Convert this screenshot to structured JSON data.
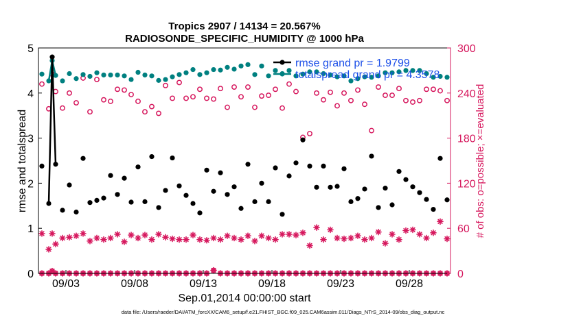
{
  "chart_data": {
    "type": "line",
    "title": "Tropics 2907 / 14134 = 20.567%",
    "subtitle": "RADIOSONDE_SPECIFIC_HUMIDITY @ 1000 hPa",
    "xlabel": "Sep.01,2014 00:00:00 start",
    "ylabel": "rmse and totalspread",
    "ylabel_right": "# of obs: o=possible; ×=evaluated",
    "footer": "data file: /Users/raeder/DAI/ATM_forcXX/CAM6_setup/f.e21.FHIST_BGC.f09_025.CAM6assim.011/Diags_NTrS_2014-09/obs_diag_output.nc",
    "xlim": [
      1.0,
      31.0
    ],
    "ylim": [
      0,
      5
    ],
    "ylim_right": [
      0,
      300
    ],
    "x_ticks": [
      3,
      8,
      13,
      18,
      23,
      28
    ],
    "x_tick_labels": [
      "09/03",
      "09/08",
      "09/13",
      "09/18",
      "09/23",
      "09/28"
    ],
    "y_ticks": [
      0,
      1,
      2,
      3,
      4,
      5
    ],
    "y_tick_labels": [
      "0",
      "1",
      "2",
      "3",
      "4",
      "5"
    ],
    "y_right_ticks": [
      0,
      60,
      120,
      180,
      240,
      300
    ],
    "y_right_tick_labels": [
      "0",
      "60",
      "120",
      "180",
      "240",
      "300"
    ],
    "legend": [
      {
        "label": "rmse grand pr = 1.9799",
        "color": "#000000"
      },
      {
        "label": "totalspread grand pr = 4.3578",
        "color": "#008080"
      }
    ],
    "colors": {
      "rmse": "#000000",
      "spread": "#008080",
      "obs": "#d6175d",
      "legend_text": "#1c4fe8"
    },
    "series": [
      {
        "name": "rmse",
        "axis": "left",
        "x": [
          1.25,
          1.75,
          2.0,
          2.25,
          2.75,
          3.25,
          3.75,
          4.25,
          4.75,
          5.25,
          5.75,
          6.25,
          6.75,
          7.25,
          7.75,
          8.25,
          8.75,
          9.25,
          9.75,
          10.25,
          10.75,
          11.25,
          11.75,
          12.25,
          12.75,
          13.25,
          13.75,
          14.25,
          14.75,
          15.25,
          15.75,
          16.25,
          16.75,
          17.25,
          17.75,
          18.25,
          18.75,
          19.25,
          19.75,
          20.25,
          20.75,
          21.25,
          21.75,
          22.25,
          22.75,
          23.25,
          23.75,
          24.25,
          24.75,
          25.25,
          25.75,
          26.25,
          26.75,
          27.25,
          27.75,
          28.25,
          28.75,
          29.25,
          29.75,
          30.25,
          30.75
        ],
        "values": [
          2.38,
          1.55,
          4.8,
          2.42,
          1.4,
          1.96,
          1.36,
          2.55,
          1.57,
          1.62,
          1.67,
          2.17,
          1.75,
          2.11,
          1.58,
          2.36,
          1.59,
          2.59,
          1.46,
          1.84,
          2.56,
          1.94,
          1.73,
          1.55,
          1.34,
          2.29,
          1.82,
          2.23,
          1.75,
          1.92,
          1.44,
          2.42,
          1.59,
          2.0,
          1.59,
          2.34,
          1.31,
          2.16,
          2.45,
          2.96,
          2.38,
          1.91,
          2.38,
          1.91,
          1.93,
          2.32,
          1.59,
          1.66,
          1.87,
          2.6,
          1.46,
          1.89,
          1.52,
          2.26,
          2.08,
          1.92,
          1.79,
          1.64,
          1.42,
          2.55,
          1.63
        ],
        "line_x": [
          1.75,
          2.0,
          2.25
        ],
        "line_values": [
          1.55,
          4.8,
          2.42
        ]
      },
      {
        "name": "totalspread",
        "axis": "left",
        "x": [
          1.25,
          1.75,
          2.0,
          2.25,
          2.75,
          3.25,
          3.75,
          4.25,
          4.75,
          5.25,
          5.75,
          6.25,
          6.75,
          7.25,
          7.75,
          8.25,
          8.75,
          9.25,
          9.75,
          10.25,
          10.75,
          11.25,
          11.75,
          12.25,
          12.75,
          13.25,
          13.75,
          14.25,
          14.75,
          15.25,
          15.75,
          16.25,
          16.75,
          17.25,
          17.75,
          18.25,
          18.75,
          19.25,
          19.75,
          20.25,
          20.75,
          21.25,
          21.75,
          22.25,
          22.75,
          23.25,
          23.75,
          24.25,
          24.75,
          25.25,
          25.75,
          26.25,
          26.75,
          27.25,
          27.75,
          28.25,
          28.75,
          29.25,
          29.75,
          30.25,
          30.75
        ],
        "values": [
          4.42,
          4.27,
          4.72,
          4.39,
          4.27,
          4.43,
          4.32,
          4.41,
          4.37,
          4.45,
          4.4,
          4.4,
          4.4,
          4.38,
          4.3,
          4.46,
          4.4,
          4.38,
          4.28,
          4.3,
          4.36,
          4.41,
          4.45,
          4.52,
          4.41,
          4.45,
          4.52,
          4.51,
          4.57,
          4.53,
          4.6,
          4.63,
          4.41,
          4.6,
          4.38,
          4.5,
          4.43,
          4.5,
          4.38,
          4.42,
          4.47,
          4.47,
          4.43,
          4.4,
          4.36,
          4.38,
          4.27,
          4.32,
          4.36,
          4.35,
          4.38,
          4.45,
          4.45,
          4.47,
          4.5,
          4.5,
          4.5,
          4.43,
          4.35,
          4.37,
          4.35
        ],
        "line_x": [
          1.75,
          2.0,
          2.25
        ],
        "line_values": [
          4.27,
          4.72,
          4.39
        ]
      },
      {
        "name": "obs possible",
        "axis": "right",
        "marker": "open-circle",
        "x": [
          1.25,
          1.75,
          2.0,
          2.25,
          2.75,
          3.25,
          3.75,
          4.25,
          4.75,
          5.25,
          5.75,
          6.25,
          6.75,
          7.25,
          7.75,
          8.25,
          8.75,
          9.25,
          9.75,
          10.25,
          10.75,
          11.25,
          11.75,
          12.25,
          12.75,
          13.25,
          13.75,
          14.25,
          14.75,
          15.25,
          15.75,
          16.25,
          16.75,
          17.25,
          17.75,
          18.25,
          18.75,
          19.25,
          19.75,
          20.25,
          20.75,
          21.25,
          21.75,
          22.25,
          22.75,
          23.25,
          23.75,
          24.25,
          24.75,
          25.25,
          25.75,
          26.25,
          26.75,
          27.25,
          27.75,
          28.25,
          28.75,
          29.25,
          29.75,
          30.25,
          30.75
        ],
        "values": [
          252,
          219,
          265,
          242,
          220,
          240,
          227,
          260,
          215,
          258,
          231,
          229,
          245,
          244,
          238,
          229,
          215,
          222,
          213,
          250,
          233,
          254,
          233,
          235,
          245,
          233,
          232,
          246,
          221,
          248,
          235,
          248,
          221,
          236,
          237,
          245,
          220,
          252,
          242,
          181,
          186,
          240,
          231,
          241,
          223,
          240,
          230,
          244,
          225,
          190,
          248,
          237,
          237,
          246,
          230,
          228,
          230,
          245,
          245,
          243,
          230
        ],
        "offscreen_values": [
          -1,
          -1,
          290,
          -1,
          -1,
          -1,
          -1,
          -1,
          -1,
          -1,
          -1,
          -1,
          -1,
          -1,
          -1,
          -1,
          -1,
          -1,
          -1,
          -1,
          -1,
          -1,
          -1,
          -1,
          -1,
          -1,
          -1,
          -1,
          -1,
          -1,
          -1,
          -1,
          -1,
          -1,
          -1,
          -1,
          -1,
          -1,
          -1,
          -1,
          -1,
          -1,
          -1,
          -1,
          -1,
          -1,
          -1,
          -1,
          -1,
          -1,
          -1,
          -1,
          -1,
          -1,
          -1,
          -1,
          -1,
          -1,
          -1,
          -1,
          -1
        ]
      },
      {
        "name": "obs evaluated",
        "axis": "right",
        "marker": "asterisk",
        "x": [
          1.25,
          1.75,
          2.0,
          2.25,
          2.75,
          3.25,
          3.75,
          4.25,
          4.75,
          5.25,
          5.75,
          6.25,
          6.75,
          7.25,
          7.75,
          8.25,
          8.75,
          9.25,
          9.75,
          10.25,
          10.75,
          11.25,
          11.75,
          12.25,
          12.75,
          13.25,
          13.75,
          14.25,
          14.75,
          15.25,
          15.75,
          16.25,
          16.75,
          17.25,
          17.75,
          18.25,
          18.75,
          19.25,
          19.75,
          20.25,
          20.75,
          21.25,
          21.75,
          22.25,
          22.75,
          23.25,
          23.75,
          24.25,
          24.75,
          25.25,
          25.75,
          26.25,
          26.75,
          27.25,
          27.75,
          28.25,
          28.75,
          29.25,
          29.75,
          30.25,
          30.75
        ],
        "values": [
          53,
          32,
          53,
          39,
          47,
          48,
          50,
          53,
          43,
          47,
          45,
          47,
          52,
          42,
          51,
          47,
          51,
          45,
          52,
          48,
          46,
          45,
          45,
          51,
          45,
          44,
          47,
          45,
          50,
          47,
          45,
          50,
          43,
          50,
          47,
          45,
          52,
          52,
          51,
          54,
          37,
          61,
          45,
          58,
          47,
          46,
          47,
          50,
          45,
          47,
          55,
          40,
          52,
          45,
          57,
          58,
          52,
          47,
          54,
          69,
          46
        ]
      },
      {
        "name": "obs baseline",
        "axis": "right",
        "marker": "open-circle+asterisk",
        "x": [
          1.25,
          1.75,
          2.0,
          2.25,
          2.75,
          3.25,
          3.75,
          4.25,
          4.75,
          5.25,
          5.75,
          6.25,
          6.75,
          7.25,
          7.75,
          8.25,
          8.75,
          9.25,
          9.75,
          10.25,
          10.75,
          11.25,
          11.75,
          12.25,
          12.75,
          13.25,
          13.75,
          14.25,
          14.75,
          15.25,
          15.75,
          16.25,
          16.75,
          17.25,
          17.75,
          18.25,
          18.75,
          19.25,
          19.75,
          20.25,
          20.75,
          21.25,
          21.75,
          22.25,
          22.75,
          23.25,
          23.75,
          24.25,
          24.75,
          25.25,
          25.75,
          26.25,
          26.75,
          27.25,
          27.75,
          28.25,
          28.75,
          29.25,
          29.75,
          30.25,
          30.75
        ],
        "values": [
          0,
          0,
          3,
          0,
          0,
          0,
          0,
          0,
          0,
          0,
          0,
          0,
          0,
          0,
          0,
          0,
          0,
          0,
          0,
          0,
          0,
          0,
          0,
          0,
          0,
          0,
          4,
          0,
          0,
          0,
          0,
          0,
          0,
          0,
          0,
          0,
          0,
          0,
          0,
          0,
          0,
          0,
          0,
          0,
          0,
          0,
          0,
          0,
          0,
          0,
          0,
          0,
          0,
          0,
          0,
          0,
          0,
          0,
          0,
          0,
          0
        ]
      }
    ]
  }
}
